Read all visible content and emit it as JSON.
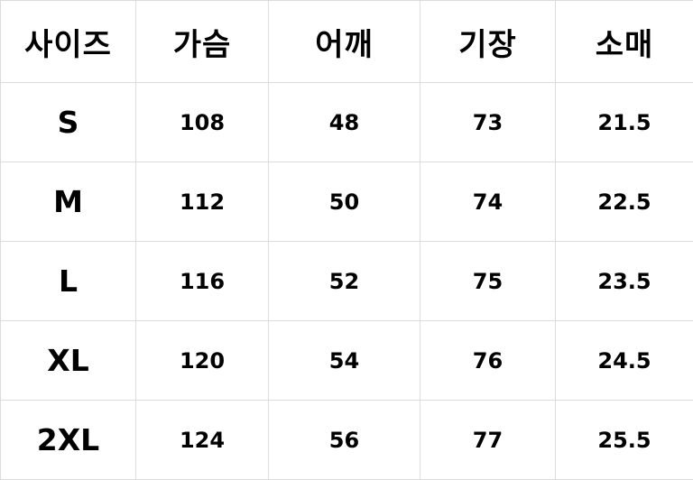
{
  "headers": [
    "사이즈",
    "가슴",
    "어깨",
    "기장",
    "소매"
  ],
  "rows": [
    [
      "S",
      "108",
      "48",
      "73",
      "21.5"
    ],
    [
      "M",
      "112",
      "50",
      "74",
      "22.5"
    ],
    [
      "L",
      "116",
      "52",
      "75",
      "23.5"
    ],
    [
      "XL",
      "120",
      "54",
      "76",
      "24.5"
    ],
    [
      "2XL",
      "124",
      "56",
      "77",
      "25.5"
    ]
  ],
  "colors": {
    "border": "#dcdcdc",
    "text": "#000000",
    "background": "#ffffff"
  }
}
